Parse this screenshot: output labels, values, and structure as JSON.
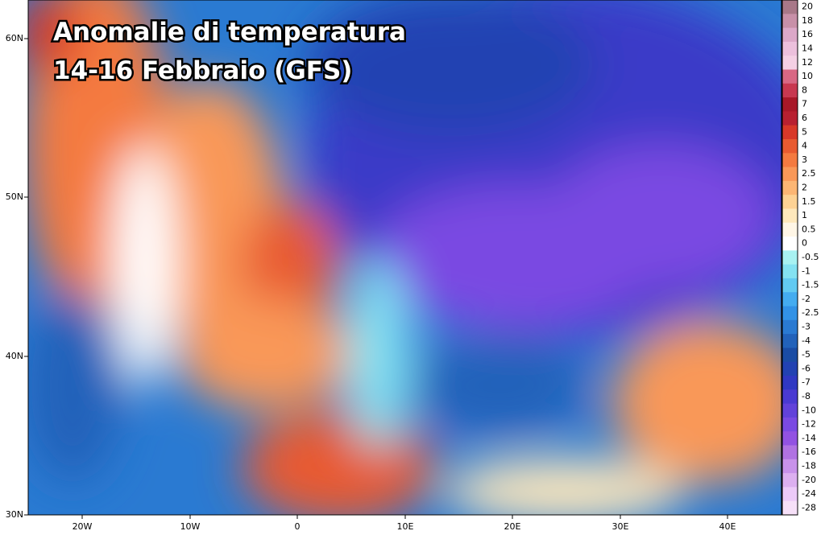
{
  "title": {
    "line1": "Anomalie di temperatura",
    "line2": "14-16 Febbraio (GFS)"
  },
  "lat_labels": [
    "60N",
    "50N",
    "40N",
    "30N"
  ],
  "lon_labels": [
    "20W",
    "10W",
    "0",
    "10E",
    "20E",
    "30E",
    "40E"
  ],
  "colorbar": {
    "levels": [
      20,
      18,
      16,
      14,
      12,
      10,
      8,
      7,
      6,
      5,
      4,
      3,
      2.5,
      2,
      1.5,
      1,
      0.5,
      0,
      -0.5,
      -1,
      -1.5,
      -2,
      -2.5,
      -3,
      -4,
      -5,
      -6,
      -7,
      -8,
      -10,
      -12,
      -14,
      -16,
      -18,
      -20,
      -24,
      -28
    ],
    "colors": [
      "#a87888",
      "#c890a8",
      "#dca8c8",
      "#ecc0dc",
      "#f4d0e4",
      "#d86884",
      "#c83850",
      "#a81828",
      "#b82030",
      "#d83828",
      "#e85a30",
      "#f47a40",
      "#f99858",
      "#fcb674",
      "#fdd294",
      "#fee8bc",
      "#fff6e6",
      "#ffffff",
      "#a8f2f2",
      "#84e2f2",
      "#62caf2",
      "#44acf0",
      "#3292e6",
      "#2a7ad2",
      "#2262ba",
      "#1a4ca4",
      "#2242b2",
      "#3038c2",
      "#4a3ad2",
      "#6242da",
      "#7a4ae2",
      "#9252e2",
      "#b072e2",
      "#c892ea",
      "#dcb0f0",
      "#eccaf8",
      "#f6e0f8"
    ]
  }
}
